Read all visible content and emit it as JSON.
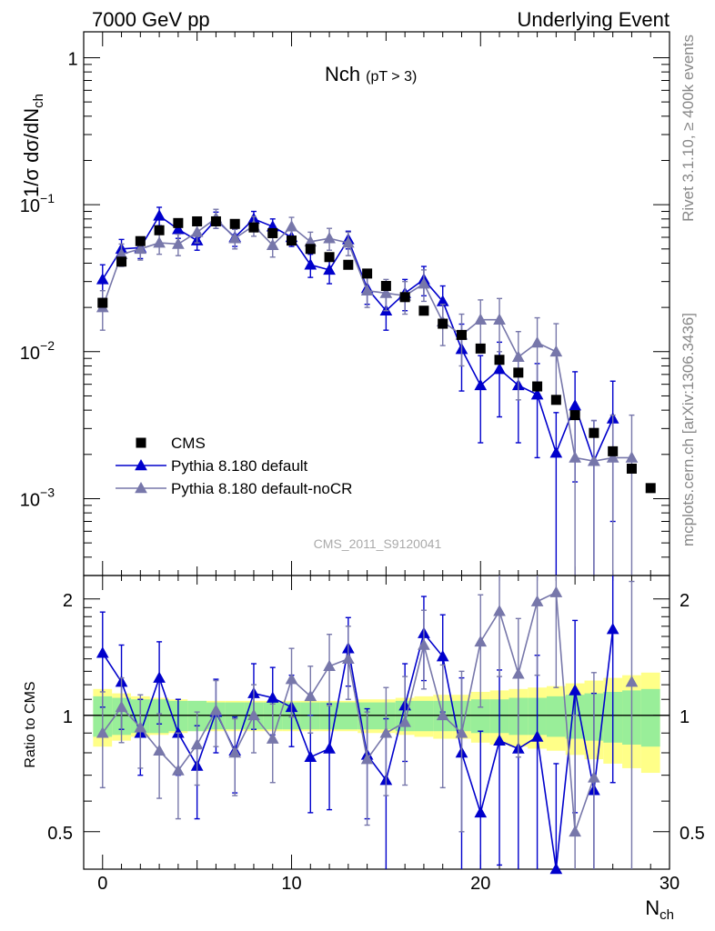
{
  "header": {
    "left": "7000 GeV pp",
    "right": "Underlying Event"
  },
  "side": {
    "rivet": "Rivet 3.1.10, ≥ 400k events",
    "mcplots": "mcplots.cern.ch [arXiv:1306.3436]"
  },
  "chart_data": {
    "type": "scatter",
    "title": "Nch",
    "title_sub": "(pT >  3)",
    "watermark": "CMS_2011_S9120041",
    "xlabel_main": "N",
    "xlabel_sub": "ch",
    "ylabel_main": "1/σ dσ/dN",
    "ylabel_sub": "ch",
    "ratio_ylabel": "Ratio to CMS",
    "x_range": [
      -1,
      30
    ],
    "y_range": [
      0.0003,
      1.5
    ],
    "y_scale": "log",
    "ratio_range": [
      0.4,
      2.3
    ],
    "ratio_scale": "log",
    "x_ticks": [
      "0",
      "10",
      "20",
      "30"
    ],
    "x_tick_values": [
      0,
      10,
      20,
      30
    ],
    "y_ticks": [
      {
        "value": 1,
        "base": "1",
        "exp": ""
      },
      {
        "value": 0.1,
        "base": "10",
        "exp": "−1"
      },
      {
        "value": 0.01,
        "base": "10",
        "exp": "−2"
      },
      {
        "value": 0.001,
        "base": "10",
        "exp": "−3"
      }
    ],
    "ratio_ticks": [
      {
        "value": 2,
        "label": "2"
      },
      {
        "value": 1,
        "label": "1"
      },
      {
        "value": 0.5,
        "label": "0.5"
      }
    ],
    "legend_position": "bottom-left",
    "legend": [
      {
        "name": "CMS",
        "marker": "square",
        "color": "#000000"
      },
      {
        "name": "Pythia 8.180 default",
        "marker": "triangle",
        "color": "#0000cc"
      },
      {
        "name": "Pythia 8.180 default-noCR",
        "marker": "triangle",
        "color": "#7777aa"
      }
    ],
    "x": [
      0,
      1,
      2,
      3,
      4,
      5,
      6,
      7,
      8,
      9,
      10,
      11,
      12,
      13,
      14,
      15,
      16,
      17,
      18,
      19,
      20,
      21,
      22,
      23,
      24,
      25,
      26,
      27,
      28,
      29
    ],
    "cms": [
      0.0215,
      0.041,
      0.0565,
      0.067,
      0.075,
      0.077,
      0.077,
      0.074,
      0.07,
      0.064,
      0.057,
      0.05,
      0.044,
      0.039,
      0.034,
      0.028,
      0.0235,
      0.019,
      0.0155,
      0.013,
      0.0105,
      0.0088,
      0.0072,
      0.0058,
      0.0047,
      0.0037,
      0.0028,
      0.0021,
      0.0016,
      0.00118
    ],
    "band_inner": [
      0.12,
      0.11,
      0.1,
      0.1,
      0.09,
      0.09,
      0.08,
      0.08,
      0.08,
      0.08,
      0.08,
      0.08,
      0.08,
      0.08,
      0.08,
      0.08,
      0.09,
      0.09,
      0.09,
      0.09,
      0.1,
      0.1,
      0.11,
      0.11,
      0.12,
      0.13,
      0.14,
      0.15,
      0.16,
      0.17
    ],
    "band_outer": [
      0.17,
      0.14,
      0.12,
      0.11,
      0.1,
      0.09,
      0.09,
      0.09,
      0.09,
      0.09,
      0.09,
      0.09,
      0.09,
      0.09,
      0.1,
      0.1,
      0.11,
      0.12,
      0.13,
      0.13,
      0.15,
      0.16,
      0.17,
      0.18,
      0.19,
      0.21,
      0.23,
      0.25,
      0.27,
      0.29
    ],
    "series": [
      {
        "name": "Pythia 8.180 default",
        "color": "#0000cc",
        "values": [
          0.031,
          0.05,
          0.051,
          0.084,
          0.068,
          0.057,
          0.079,
          0.06,
          0.08,
          0.071,
          0.06,
          0.039,
          0.036,
          0.058,
          0.027,
          0.019,
          0.025,
          0.031,
          0.022,
          0.0104,
          0.0059,
          0.0076,
          0.0059,
          0.0051,
          0.00205,
          0.0043,
          0.0018,
          0.0035,
          null,
          null
        ],
        "errors": [
          0.008,
          0.008,
          0.008,
          0.012,
          0.009,
          0.008,
          0.01,
          0.008,
          0.01,
          0.009,
          0.008,
          0.007,
          0.007,
          0.008,
          0.006,
          0.005,
          0.006,
          0.007,
          0.006,
          0.005,
          0.0035,
          0.004,
          0.0035,
          0.0032,
          0.0018,
          0.003,
          0.0016,
          0.0028,
          null,
          null
        ],
        "ratio": [
          1.45,
          1.22,
          0.9,
          1.25,
          0.9,
          0.74,
          1.02,
          0.81,
          1.14,
          1.11,
          1.05,
          0.78,
          0.82,
          1.49,
          0.79,
          0.68,
          1.06,
          1.63,
          1.42,
          0.8,
          0.56,
          0.86,
          0.82,
          0.88,
          0.4,
          1.16,
          0.64,
          1.67,
          null,
          null
        ],
        "ratio_err": [
          0.4,
          0.3,
          0.2,
          0.3,
          0.2,
          0.2,
          0.22,
          0.18,
          0.22,
          0.22,
          0.22,
          0.22,
          0.25,
          0.3,
          0.25,
          0.3,
          0.3,
          0.4,
          0.4,
          0.45,
          0.35,
          0.45,
          0.45,
          0.55,
          0.35,
          0.6,
          0.5,
          1.0,
          null,
          null
        ]
      },
      {
        "name": "Pythia 8.180 default-noCR",
        "color": "#7777aa",
        "values": [
          0.02,
          0.046,
          0.05,
          0.055,
          0.054,
          0.065,
          0.081,
          0.059,
          0.072,
          0.053,
          0.071,
          0.056,
          0.059,
          0.055,
          0.026,
          0.025,
          0.024,
          0.029,
          0.016,
          0.013,
          0.0165,
          0.0165,
          0.0092,
          0.0115,
          0.01,
          0.0019,
          0.0018,
          0.0019,
          0.0019,
          null
        ],
        "errors": [
          0.006,
          0.008,
          0.008,
          0.009,
          0.009,
          0.01,
          0.012,
          0.009,
          0.011,
          0.009,
          0.011,
          0.009,
          0.01,
          0.01,
          0.006,
          0.006,
          0.006,
          0.007,
          0.005,
          0.005,
          0.006,
          0.0065,
          0.0045,
          0.0055,
          0.0055,
          0.0018,
          0.0016,
          0.0018,
          0.0018,
          null
        ],
        "ratio": [
          0.9,
          1.05,
          0.93,
          0.81,
          0.72,
          0.84,
          1.03,
          0.8,
          1.0,
          0.87,
          1.24,
          1.12,
          1.34,
          1.4,
          0.77,
          0.9,
          0.96,
          1.52,
          1.0,
          0.9,
          1.55,
          1.86,
          1.28,
          1.97,
          2.08,
          0.5,
          0.69,
          null,
          1.22,
          null
        ],
        "ratio_err": [
          0.25,
          0.2,
          0.2,
          0.2,
          0.18,
          0.18,
          0.2,
          0.18,
          0.2,
          0.2,
          0.25,
          0.22,
          0.28,
          0.3,
          0.25,
          0.28,
          0.3,
          0.35,
          0.35,
          0.4,
          0.5,
          0.6,
          0.5,
          0.7,
          0.9,
          0.5,
          0.6,
          null,
          1.0,
          null
        ]
      }
    ]
  }
}
